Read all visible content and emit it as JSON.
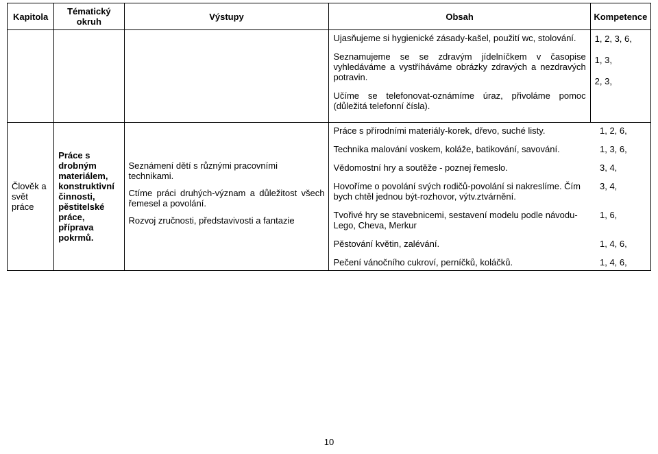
{
  "headers": {
    "c1": "Kapitola",
    "c2": "Tématický okruh",
    "c3": "Výstupy",
    "c4": "Obsah",
    "c5": "Kompetence"
  },
  "row1": {
    "obsah": {
      "p1": "Ujasňujeme si hygienické zásady-kašel, použití wc, stolování.",
      "p2": "Seznamujeme se se zdravým jídelníčkem v časopise vyhledáváme a vystříháváme obrázky zdravých a nezdravých potravin.",
      "p3": "Učíme se telefonovat-oznámíme úraz, přivoláme pomoc (důležitá telefonní čísla)."
    },
    "kompetence": {
      "k1": "1, 2, 3, 6,",
      "k2": "1, 3,",
      "k3": "2, 3,"
    }
  },
  "row2": {
    "kapitola": "Člověk a svět práce",
    "okruh": "Práce s drobným materiálem, konstruktivní činnosti, pěstitelské práce, příprava pokrmů.",
    "outputs": {
      "o1": "Seznámení dětí s různými pracovními technikami.",
      "o2": "Ctíme práci druhých-význam a důležitost všech řemesel a povolání.",
      "o3": "Rozvoj zručnosti, představivosti a fantazie"
    },
    "lines": [
      {
        "t": "Práce s přírodními materiály-korek, dřevo, suché listy.",
        "k": "1, 2, 6,"
      },
      {
        "t": "Technika malování voskem, koláže, batikování, savování.",
        "k": "1, 3, 6,"
      },
      {
        "t": "Vědomostní hry a soutěže - poznej řemeslo.",
        "k": "3, 4,"
      },
      {
        "t": "Hovoříme o povolání svých rodičů-povolání si nakreslíme. Čím bych chtěl jednou být-rozhovor, výtv.ztvárnění.",
        "k": "3, 4,"
      },
      {
        "t": "Tvořivé hry se stavebnicemi, sestavení modelu podle návodu- Lego, Cheva, Merkur",
        "k": "1, 6,"
      },
      {
        "t": "Pěstování květin, zalévání.",
        "k": "1, 4, 6,"
      },
      {
        "t": "Pečení vánočního cukroví, perníčků, koláčků.",
        "k": "1, 4, 6,"
      }
    ]
  },
  "pageNumber": "10"
}
